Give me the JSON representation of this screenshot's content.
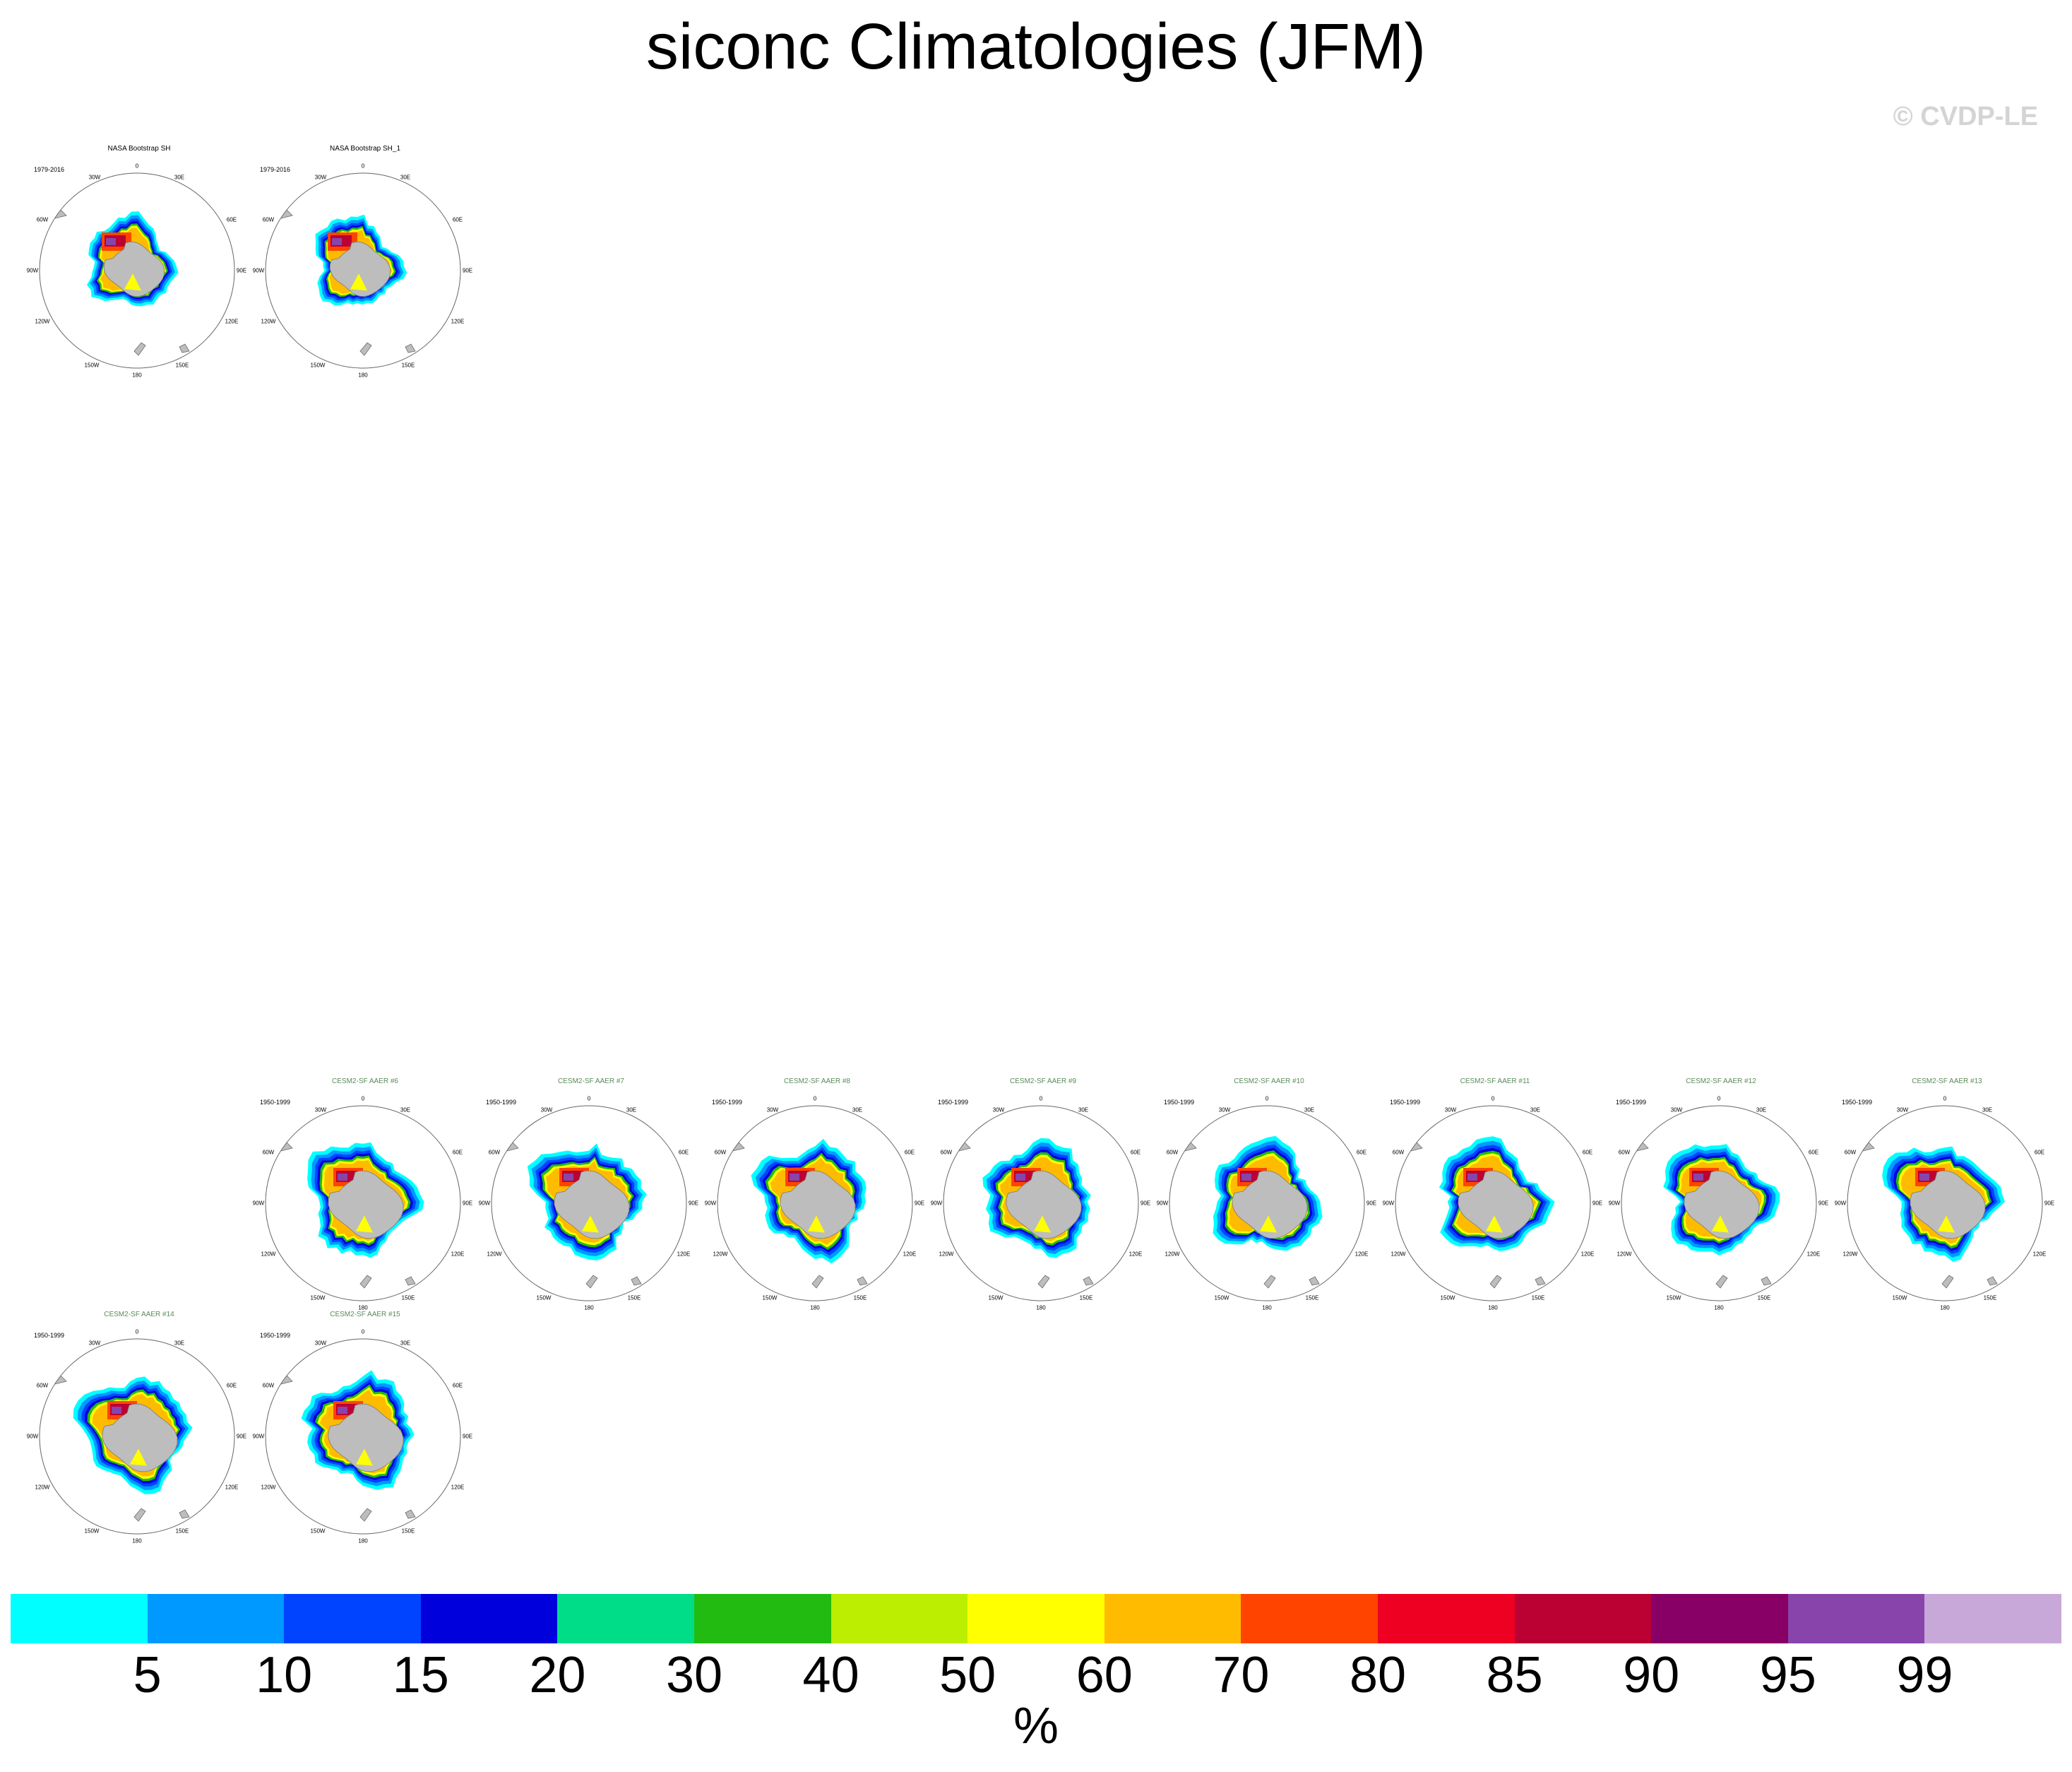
{
  "title": "siconc Climatologies (JFM)",
  "copyright": "© CVDP-LE",
  "units": "%",
  "colorbar": {
    "ticks": [
      "5",
      "10",
      "15",
      "20",
      "30",
      "40",
      "50",
      "60",
      "70",
      "80",
      "85",
      "90",
      "95",
      "99"
    ],
    "colors": [
      "#00ffff",
      "#0099ff",
      "#0044ff",
      "#0000dd",
      "#00dd88",
      "#22bb11",
      "#bbee00",
      "#ffff00",
      "#ffbb00",
      "#ff4400",
      "#ee0022",
      "#bb0033",
      "#880066",
      "#8844aa",
      "#c8a8d8"
    ]
  },
  "map_labels": {
    "top": "0",
    "bottom": "180",
    "tr": "30E",
    "tl": "30W",
    "r1": "60E",
    "l1": "60W",
    "r2": "90E",
    "l2": "90W",
    "r3": "120E",
    "l3": "120W",
    "br": "150E",
    "bl": "150W"
  },
  "chart_data": [
    {
      "type": "heatmap",
      "title": "NASA Bootstrap SH",
      "years": "1979-2016",
      "title_color": "#000000",
      "variant": "obs"
    },
    {
      "type": "heatmap",
      "title": "NASA Bootstrap SH_1",
      "years": "1979-2016",
      "title_color": "#000000",
      "variant": "obs"
    },
    {
      "type": "heatmap",
      "title": "CESM2-SF AAER #6",
      "years": "1950-1999",
      "title_color": "#5a8a5a",
      "variant": "model"
    },
    {
      "type": "heatmap",
      "title": "CESM2-SF AAER #7",
      "years": "1950-1999",
      "title_color": "#5a8a5a",
      "variant": "model"
    },
    {
      "type": "heatmap",
      "title": "CESM2-SF AAER #8",
      "years": "1950-1999",
      "title_color": "#5a8a5a",
      "variant": "model"
    },
    {
      "type": "heatmap",
      "title": "CESM2-SF AAER #9",
      "years": "1950-1999",
      "title_color": "#5a8a5a",
      "variant": "model"
    },
    {
      "type": "heatmap",
      "title": "CESM2-SF AAER #10",
      "years": "1950-1999",
      "title_color": "#5a8a5a",
      "variant": "model"
    },
    {
      "type": "heatmap",
      "title": "CESM2-SF AAER #11",
      "years": "1950-1999",
      "title_color": "#5a8a5a",
      "variant": "model"
    },
    {
      "type": "heatmap",
      "title": "CESM2-SF AAER #12",
      "years": "1950-1999",
      "title_color": "#5a8a5a",
      "variant": "model"
    },
    {
      "type": "heatmap",
      "title": "CESM2-SF AAER #13",
      "years": "1950-1999",
      "title_color": "#5a8a5a",
      "variant": "model"
    },
    {
      "type": "heatmap",
      "title": "CESM2-SF AAER #14",
      "years": "1950-1999",
      "title_color": "#5a8a5a",
      "variant": "model"
    },
    {
      "type": "heatmap",
      "title": "CESM2-SF AAER #15",
      "years": "1950-1999",
      "title_color": "#5a8a5a",
      "variant": "model"
    }
  ]
}
